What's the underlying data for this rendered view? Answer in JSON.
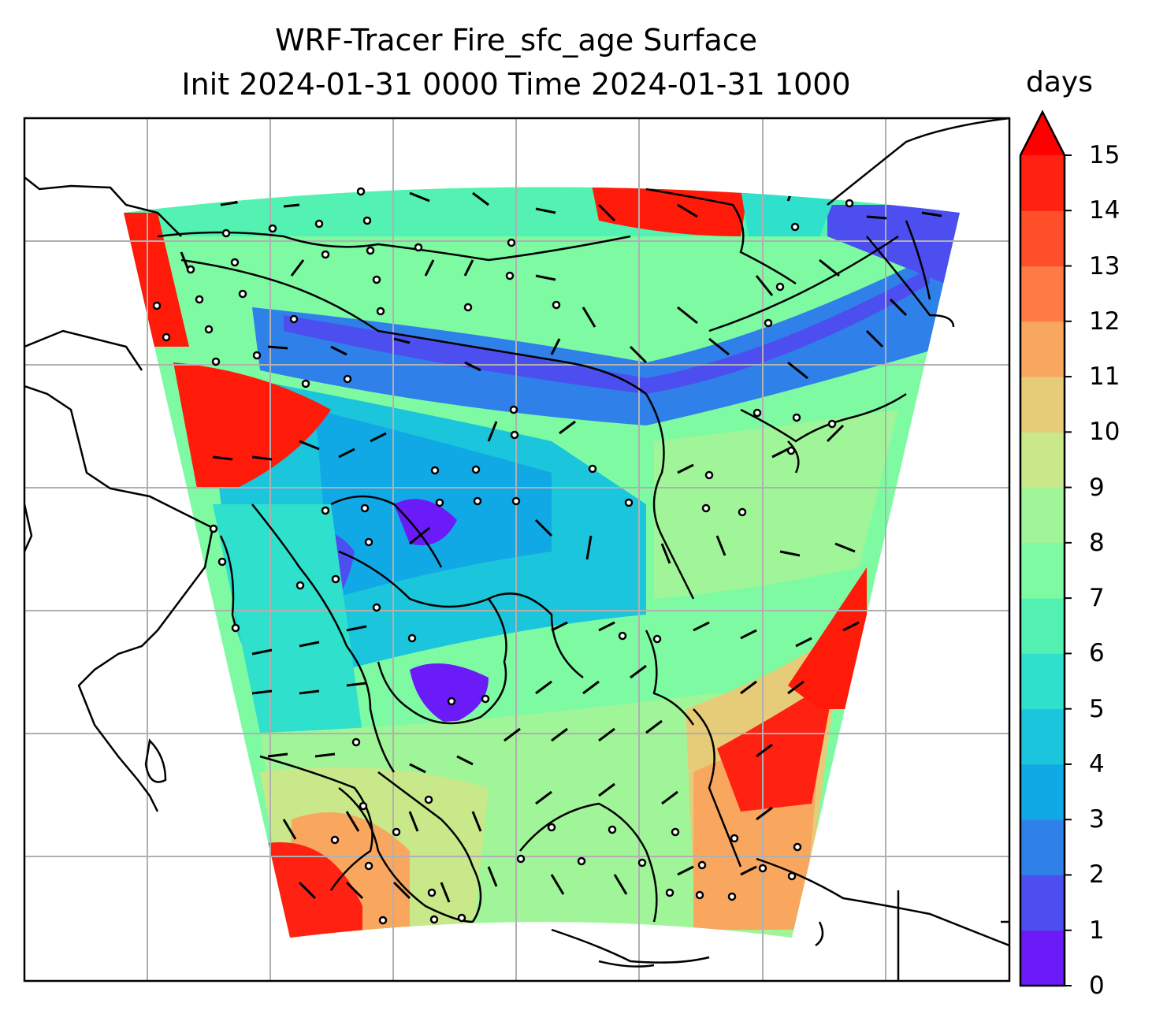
{
  "title_line1": "WRF-Tracer Fire_sfc_age Surface",
  "title_line2": "Init 2024-01-31 0000 Time 2024-01-31 1000",
  "colorbar": {
    "unit": "days",
    "ticks": [
      "0",
      "1",
      "2",
      "3",
      "4",
      "5",
      "6",
      "7",
      "8",
      "9",
      "10",
      "11",
      "12",
      "13",
      "14",
      "15"
    ],
    "colors": [
      "#6a1bf8",
      "#4c4ef0",
      "#2f80e8",
      "#11a8e6",
      "#1bc6dc",
      "#2fe0cc",
      "#53f2b2",
      "#7efaa2",
      "#a0f598",
      "#c8e88a",
      "#e6cc78",
      "#f9a75f",
      "#ff7a44",
      "#ff4f2a",
      "#ff2212"
    ],
    "extend_color": "#ff0000"
  },
  "map": {
    "grid_color": "#b0b0b0",
    "coast_color": "#000000",
    "extent": "South & East Asia to Maritime Continent"
  }
}
